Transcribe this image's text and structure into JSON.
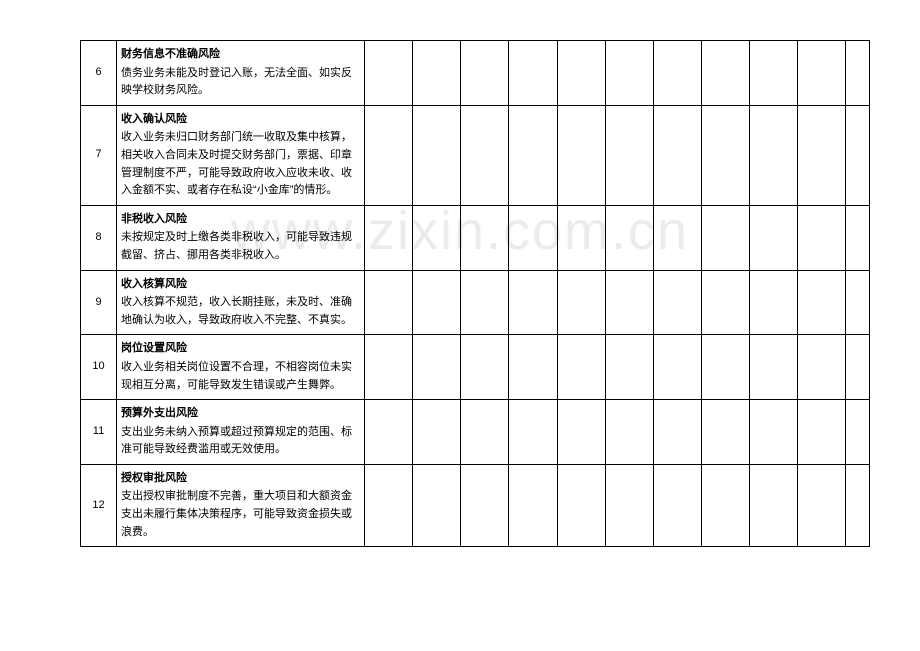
{
  "watermark": "www.zixin.com.cn",
  "rows": [
    {
      "num": "6",
      "title": "财务信息不准确风险",
      "body": "债务业务未能及时登记入账，无法全面、如实反映学校财务风险。"
    },
    {
      "num": "7",
      "title": "收入确认风险",
      "body": "收入业务未归口财务部门统一收取及集中核算，相关收入合同未及时提交财务部门，票据、印章管理制度不严，可能导致政府收入应收未收、收入金额不实、或者存在私设“小金库”的情形。"
    },
    {
      "num": "8",
      "title": "非税收入风险",
      "body": "未按规定及时上缴各类非税收入，可能导致违规截留、挤占、挪用各类非税收入。"
    },
    {
      "num": "9",
      "title": "收入核算风险",
      "body": "收入核算不规范，收入长期挂账，未及时、准确地确认为收入，导致政府收入不完整、不真实。"
    },
    {
      "num": "10",
      "title": "岗位设置风险",
      "body": "收入业务相关岗位设置不合理，不相容岗位未实现相互分离，可能导致发生错误或产生舞弊。"
    },
    {
      "num": "11",
      "title": "预算外支出风险",
      "body": "支出业务未纳入预算或超过预算规定的范围、标准可能导致经费滥用或无效使用。"
    },
    {
      "num": "12",
      "title": "授权审批风险",
      "body": "支出授权审批制度不完善，重大项目和大额资金支出未履行集体决策程序，可能导致资金损失或浪费。"
    }
  ],
  "emptyCols": 11
}
